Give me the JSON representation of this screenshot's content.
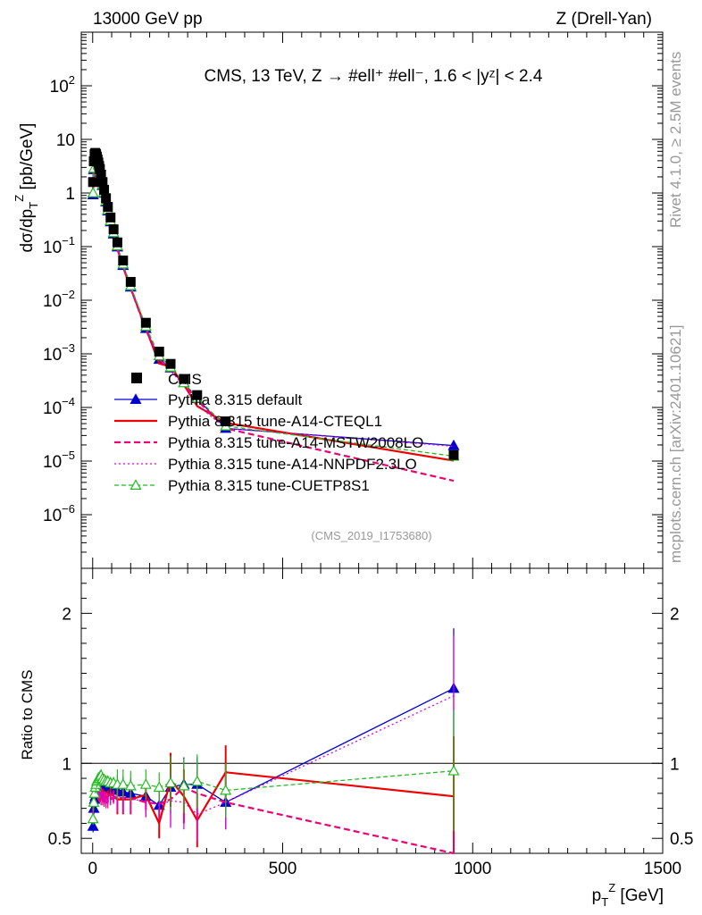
{
  "header": {
    "left": "13000 GeV pp",
    "right": "Z (Drell-Yan)"
  },
  "side_labels": {
    "rivet": "Rivet 4.1.0, ≥ 2.5M events",
    "mcplots": "mcplots.cern.ch [arXiv:2401.10621]"
  },
  "chart_data": {
    "type": "line",
    "title": "CMS, 13 TeV, Z → #ell⁺ #ell⁻, 1.6 < |yᶻ| < 2.4",
    "analysis_id": "(CMS_2019_I1753680)",
    "xlabel": "p_T^Z [GeV]",
    "ylabel": "dσ/dp_T^Z [pb/GeV]",
    "ratio_ylabel": "Ratio to CMS",
    "xlim": [
      -30,
      1500
    ],
    "ylim_log": [
      1e-07,
      1000
    ],
    "ratio_ylim": [
      0.4,
      2.3
    ],
    "x_ticks": [
      0,
      500,
      1000,
      1500
    ],
    "y_ticks": [
      {
        "v": 1e-06,
        "base": "10",
        "exp": "−6"
      },
      {
        "v": 1e-05,
        "base": "10",
        "exp": "−5"
      },
      {
        "v": 0.0001,
        "base": "10",
        "exp": "−4"
      },
      {
        "v": 0.001,
        "base": "10",
        "exp": "−3"
      },
      {
        "v": 0.01,
        "base": "10",
        "exp": "−2"
      },
      {
        "v": 0.1,
        "base": "10",
        "exp": "−1"
      },
      {
        "v": 1,
        "base": "1",
        "exp": ""
      },
      {
        "v": 10,
        "base": "10",
        "exp": ""
      },
      {
        "v": 100,
        "base": "10",
        "exp": "2"
      }
    ],
    "ratio_ticks": [
      {
        "v": 0.5,
        "label": "0.5"
      },
      {
        "v": 1,
        "label": "1"
      },
      {
        "v": 2,
        "label": "2"
      }
    ],
    "x": [
      1,
      3,
      5,
      7,
      9,
      11,
      13,
      15,
      17,
      19,
      22,
      26,
      30,
      35,
      40,
      47,
      55,
      65,
      80,
      100,
      140,
      175,
      205,
      240,
      275,
      350,
      950
    ],
    "data": {
      "name": "CMS",
      "color": "#000000",
      "values": [
        1.6,
        3.9,
        5.3,
        5.6,
        5.3,
        4.8,
        4.2,
        3.7,
        3.2,
        2.8,
        2.2,
        1.6,
        1.15,
        0.8,
        0.55,
        0.35,
        0.21,
        0.12,
        0.055,
        0.022,
        0.0038,
        0.0011,
        0.00065,
        0.00034,
        0.00017,
        5.5e-05,
        1.3e-05
      ]
    },
    "series": [
      {
        "name": "Pythia 8.315 default",
        "color": "#0000cc",
        "dash": "",
        "marker": "tri-filled",
        "ratio": [
          0.58,
          0.7,
          0.76,
          0.78,
          0.8,
          0.82,
          0.85,
          0.86,
          0.86,
          0.87,
          0.87,
          0.86,
          0.86,
          0.85,
          0.84,
          0.83,
          0.82,
          0.82,
          0.81,
          0.8,
          0.78,
          0.72,
          0.84,
          0.86,
          0.86,
          0.74,
          1.5
        ]
      },
      {
        "name": "Pythia 8.315 tune-A14-CTEQL1",
        "color": "#ee0000",
        "dash": "",
        "marker": "none",
        "ratio": [
          0.7,
          0.78,
          0.8,
          0.82,
          0.82,
          0.83,
          0.83,
          0.82,
          0.82,
          0.81,
          0.8,
          0.79,
          0.78,
          0.77,
          0.78,
          0.8,
          0.78,
          0.76,
          0.76,
          0.76,
          0.79,
          0.6,
          0.89,
          0.78,
          0.62,
          0.94,
          0.78
        ]
      },
      {
        "name": "Pythia 8.315 tune-A14-MSTW2008LO",
        "color": "#ee0077",
        "dash": "7,4",
        "marker": "none",
        "ratio": [
          0.75,
          0.8,
          0.83,
          0.84,
          0.83,
          0.82,
          0.8,
          0.79,
          0.78,
          0.78,
          0.76,
          0.76,
          0.75,
          0.74,
          0.74,
          0.76,
          0.77,
          0.77,
          0.77,
          0.77,
          0.74,
          0.73,
          0.76,
          0.84,
          0.8,
          0.74,
          0.33
        ]
      },
      {
        "name": "Pythia 8.315 tune-A14-NNPDF2.3LO",
        "color": "#dd00dd",
        "dash": "2,3",
        "marker": "none",
        "ratio": [
          0.7,
          0.76,
          0.8,
          0.82,
          0.83,
          0.83,
          0.83,
          0.83,
          0.82,
          0.81,
          0.8,
          0.78,
          0.77,
          0.77,
          0.76,
          0.77,
          0.78,
          0.78,
          0.77,
          0.76,
          0.75,
          0.72,
          0.75,
          0.74,
          0.66,
          0.74,
          1.45
        ]
      },
      {
        "name": "Pythia 8.315 tune-CUETP8S1",
        "color": "#22bb22",
        "dash": "5,3",
        "marker": "tri-open",
        "ratio": [
          0.63,
          0.74,
          0.8,
          0.84,
          0.86,
          0.88,
          0.89,
          0.9,
          0.9,
          0.91,
          0.92,
          0.9,
          0.89,
          0.88,
          0.88,
          0.87,
          0.87,
          0.86,
          0.86,
          0.85,
          0.86,
          0.84,
          0.87,
          0.85,
          0.88,
          0.82,
          0.95
        ]
      }
    ]
  }
}
